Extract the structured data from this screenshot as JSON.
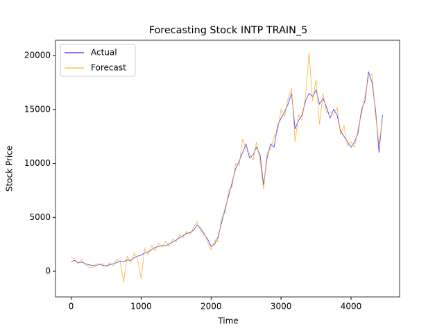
{
  "chart_data": {
    "type": "line",
    "title": "Forecasting Stock INTP TRAIN_5",
    "x_label": "Time",
    "y_label": "Stock Price",
    "x": [
      0,
      50,
      100,
      150,
      200,
      250,
      300,
      350,
      400,
      450,
      500,
      550,
      600,
      650,
      700,
      750,
      800,
      850,
      900,
      950,
      1000,
      1050,
      1100,
      1150,
      1200,
      1250,
      1300,
      1350,
      1400,
      1450,
      1500,
      1550,
      1600,
      1650,
      1700,
      1750,
      1800,
      1850,
      1900,
      1950,
      2000,
      2050,
      2100,
      2150,
      2200,
      2250,
      2300,
      2350,
      2400,
      2450,
      2500,
      2550,
      2600,
      2650,
      2700,
      2750,
      2800,
      2850,
      2900,
      2950,
      3000,
      3050,
      3100,
      3150,
      3200,
      3250,
      3300,
      3350,
      3400,
      3450,
      3500,
      3550,
      3600,
      3650,
      3700,
      3750,
      3800,
      3850,
      3900,
      3950,
      4000,
      4050,
      4100,
      4150,
      4200,
      4250,
      4300,
      4350,
      4400,
      4450
    ],
    "series": [
      {
        "name": "Actual",
        "color": "#0000ff",
        "values": [
          900,
          1000,
          800,
          850,
          700,
          600,
          550,
          500,
          650,
          550,
          500,
          600,
          700,
          800,
          950,
          900,
          1050,
          1000,
          1250,
          1400,
          1500,
          1700,
          1800,
          2000,
          2200,
          2300,
          2400,
          2350,
          2550,
          2700,
          2900,
          3100,
          3300,
          3500,
          3600,
          3800,
          4300,
          4000,
          3400,
          3000,
          2300,
          2500,
          3200,
          4500,
          5800,
          7000,
          8200,
          9500,
          10200,
          11000,
          11800,
          10500,
          10800,
          11500,
          10800,
          8000,
          10500,
          11800,
          11500,
          13500,
          14200,
          14800,
          15500,
          16500,
          13200,
          14000,
          14500,
          15800,
          16500,
          16200,
          16800,
          15500,
          16000,
          15200,
          14200,
          15000,
          14500,
          13000,
          12500,
          12000,
          11500,
          12000,
          12800,
          15000,
          15800,
          18500,
          17500,
          15000,
          11000,
          14500
        ]
      },
      {
        "name": "Forecast",
        "color": "#ffa500",
        "values": [
          1300,
          1100,
          700,
          1100,
          600,
          400,
          300,
          700,
          600,
          700,
          400,
          800,
          500,
          1100,
          900,
          -1000,
          1400,
          800,
          1700,
          1100,
          -700,
          2100,
          1500,
          2400,
          1900,
          2600,
          2200,
          2800,
          2300,
          3000,
          2700,
          3400,
          3100,
          3700,
          3400,
          4100,
          4600,
          3700,
          3600,
          2700,
          2000,
          2900,
          2700,
          5000,
          5400,
          7500,
          7800,
          10000,
          9800,
          12300,
          11200,
          10900,
          10300,
          12000,
          10200,
          7600,
          11000,
          11300,
          12500,
          13000,
          15000,
          14400,
          16000,
          17000,
          12000,
          14500,
          14000,
          16300,
          20300,
          15800,
          17800,
          13600,
          16500,
          14700,
          14800,
          14500,
          15200,
          12700,
          13500,
          11600,
          12000,
          11500,
          13200,
          14600,
          16300,
          18000,
          18300,
          14500,
          11800,
          14000
        ]
      }
    ],
    "xlim": [
      -224,
      4694
    ],
    "ylim": [
      -2380,
      21420
    ],
    "xticks": [
      0,
      1000,
      2000,
      3000,
      4000
    ],
    "yticks": [
      0,
      5000,
      10000,
      15000,
      20000
    ],
    "legend": "upper left"
  }
}
